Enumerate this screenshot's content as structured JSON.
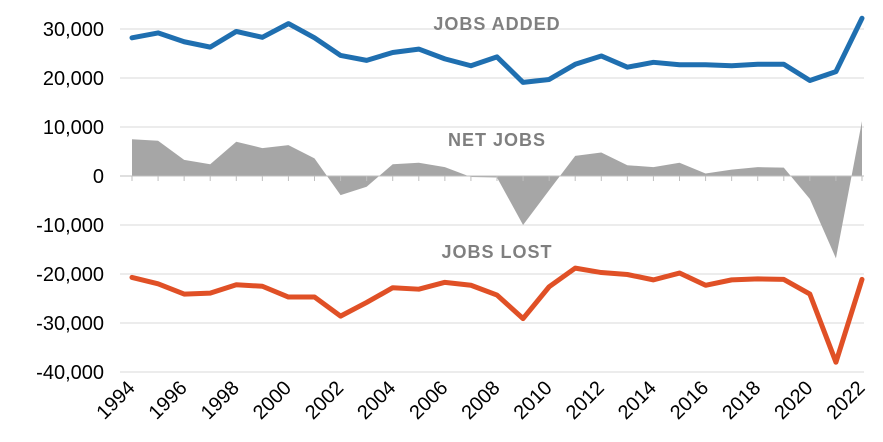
{
  "chart_data": {
    "type": "line",
    "x": [
      1994,
      1995,
      1996,
      1997,
      1998,
      1999,
      2000,
      2001,
      2002,
      2003,
      2004,
      2005,
      2006,
      2007,
      2008,
      2009,
      2010,
      2011,
      2012,
      2013,
      2014,
      2015,
      2016,
      2017,
      2018,
      2019,
      2020,
      2021,
      2022
    ],
    "xticks": [
      "1994",
      "1996",
      "1998",
      "2000",
      "2002",
      "2004",
      "2006",
      "2008",
      "2010",
      "2012",
      "2014",
      "2016",
      "2018",
      "2020",
      "2022"
    ],
    "ylim": [
      -40000,
      30000
    ],
    "yticks": [
      "30,000",
      "20,000",
      "10,000",
      "0",
      "-10,000",
      "-20,000",
      "-30,000",
      "-40,000"
    ],
    "ytick_values": [
      30000,
      20000,
      10000,
      0,
      -10000,
      -20000,
      -30000,
      -40000
    ],
    "grid": "horizontal",
    "series": [
      {
        "name": "JOBS ADDED",
        "kind": "line",
        "color": "#1f6fb0",
        "values": [
          28200,
          29200,
          27400,
          26300,
          29500,
          28300,
          31100,
          28200,
          24600,
          23600,
          25200,
          25900,
          23900,
          22500,
          24300,
          19100,
          19700,
          22800,
          24500,
          22200,
          23200,
          22700,
          22700,
          22500,
          22800,
          22800,
          19500,
          21300,
          32200
        ]
      },
      {
        "name": "NET JOBS",
        "kind": "area",
        "color": "#a6a6a6",
        "values": [
          7500,
          7200,
          3300,
          2400,
          7000,
          5700,
          6300,
          3600,
          -3900,
          -2200,
          2400,
          2700,
          1800,
          -200,
          -300,
          -10000,
          -2900,
          4100,
          4800,
          2200,
          1800,
          2700,
          500,
          1300,
          1800,
          1700,
          -4700,
          -16800,
          11200
        ]
      },
      {
        "name": "JOBS LOST",
        "kind": "line",
        "color": "#e05026",
        "values": [
          -20700,
          -22000,
          -24100,
          -23900,
          -22200,
          -22500,
          -24700,
          -24700,
          -28600,
          -25800,
          -22800,
          -23100,
          -21700,
          -22300,
          -24300,
          -29100,
          -22600,
          -18800,
          -19700,
          -20100,
          -21200,
          -19800,
          -22300,
          -21200,
          -21000,
          -21100,
          -24100,
          -38000,
          -21100
        ]
      }
    ]
  }
}
